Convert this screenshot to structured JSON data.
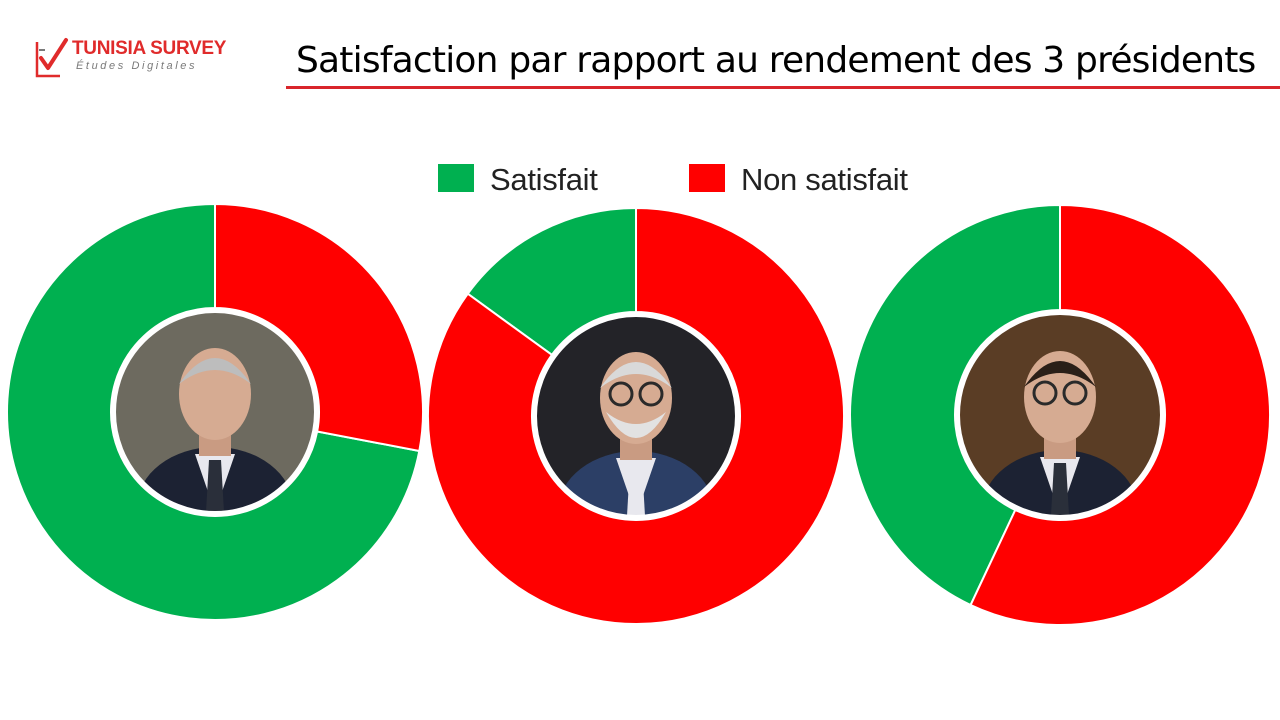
{
  "brand": {
    "name": "TUNISIA SURVEY",
    "tagline": "Études Digitales",
    "colors": {
      "name": "#e02b2b",
      "tagline": "#7a7a7a",
      "mark": "#e02b2b"
    }
  },
  "title": "Satisfaction par rapport au rendement  des 3 présidents",
  "accent_rule_color": "#d9252b",
  "legend": [
    {
      "label": "Satisfait",
      "color": "#00b050"
    },
    {
      "label": "Non satisfait",
      "color": "#ff0000"
    }
  ],
  "chart_data": [
    {
      "type": "donut",
      "categories": [
        "Satisfait",
        "Non satisfait"
      ],
      "values": [
        72,
        28
      ],
      "colors": [
        "#00b050",
        "#ff0000"
      ],
      "center": "portrait-photo"
    },
    {
      "type": "donut",
      "categories": [
        "Satisfait",
        "Non satisfait"
      ],
      "values": [
        15,
        85
      ],
      "colors": [
        "#00b050",
        "#ff0000"
      ],
      "center": "portrait-photo"
    },
    {
      "type": "donut",
      "categories": [
        "Satisfait",
        "Non satisfait"
      ],
      "values": [
        43,
        57
      ],
      "colors": [
        "#00b050",
        "#ff0000"
      ],
      "center": "portrait-photo"
    }
  ]
}
